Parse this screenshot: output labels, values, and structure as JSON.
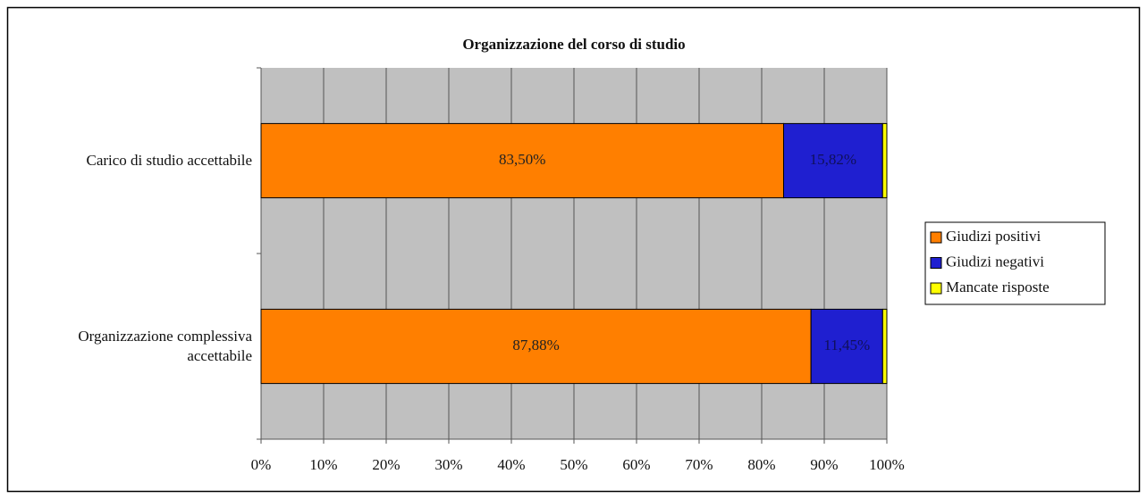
{
  "chart_data": {
    "type": "stacked-bar-horizontal",
    "title": "Organizzazione del corso di studio",
    "categories": [
      "Carico di studio accettabile",
      "Organizzazione complessiva accettabile"
    ],
    "series": [
      {
        "name": "Giudizi positivi",
        "color": "#ff7f00",
        "values": [
          83.5,
          87.88
        ],
        "value_labels": [
          "83,50%",
          "87,88%"
        ]
      },
      {
        "name": "Giudizi negativi",
        "color": "#1f1fd0",
        "values": [
          15.82,
          11.45
        ],
        "value_labels": [
          "15,82%",
          "11,45%"
        ]
      },
      {
        "name": "Mancate risposte",
        "color": "#ffff00",
        "values": [
          0.68,
          0.67
        ]
      }
    ],
    "xlim": [
      0,
      100
    ],
    "xticks": [
      {
        "value": 0,
        "label": "0%"
      },
      {
        "value": 10,
        "label": "10%"
      },
      {
        "value": 20,
        "label": "20%"
      },
      {
        "value": 30,
        "label": "30%"
      },
      {
        "value": 40,
        "label": "40%"
      },
      {
        "value": 50,
        "label": "50%"
      },
      {
        "value": 60,
        "label": "60%"
      },
      {
        "value": 70,
        "label": "70%"
      },
      {
        "value": 80,
        "label": "80%"
      },
      {
        "value": 90,
        "label": "90%"
      },
      {
        "value": 100,
        "label": "100%"
      }
    ],
    "grid": true,
    "legend": "right"
  }
}
